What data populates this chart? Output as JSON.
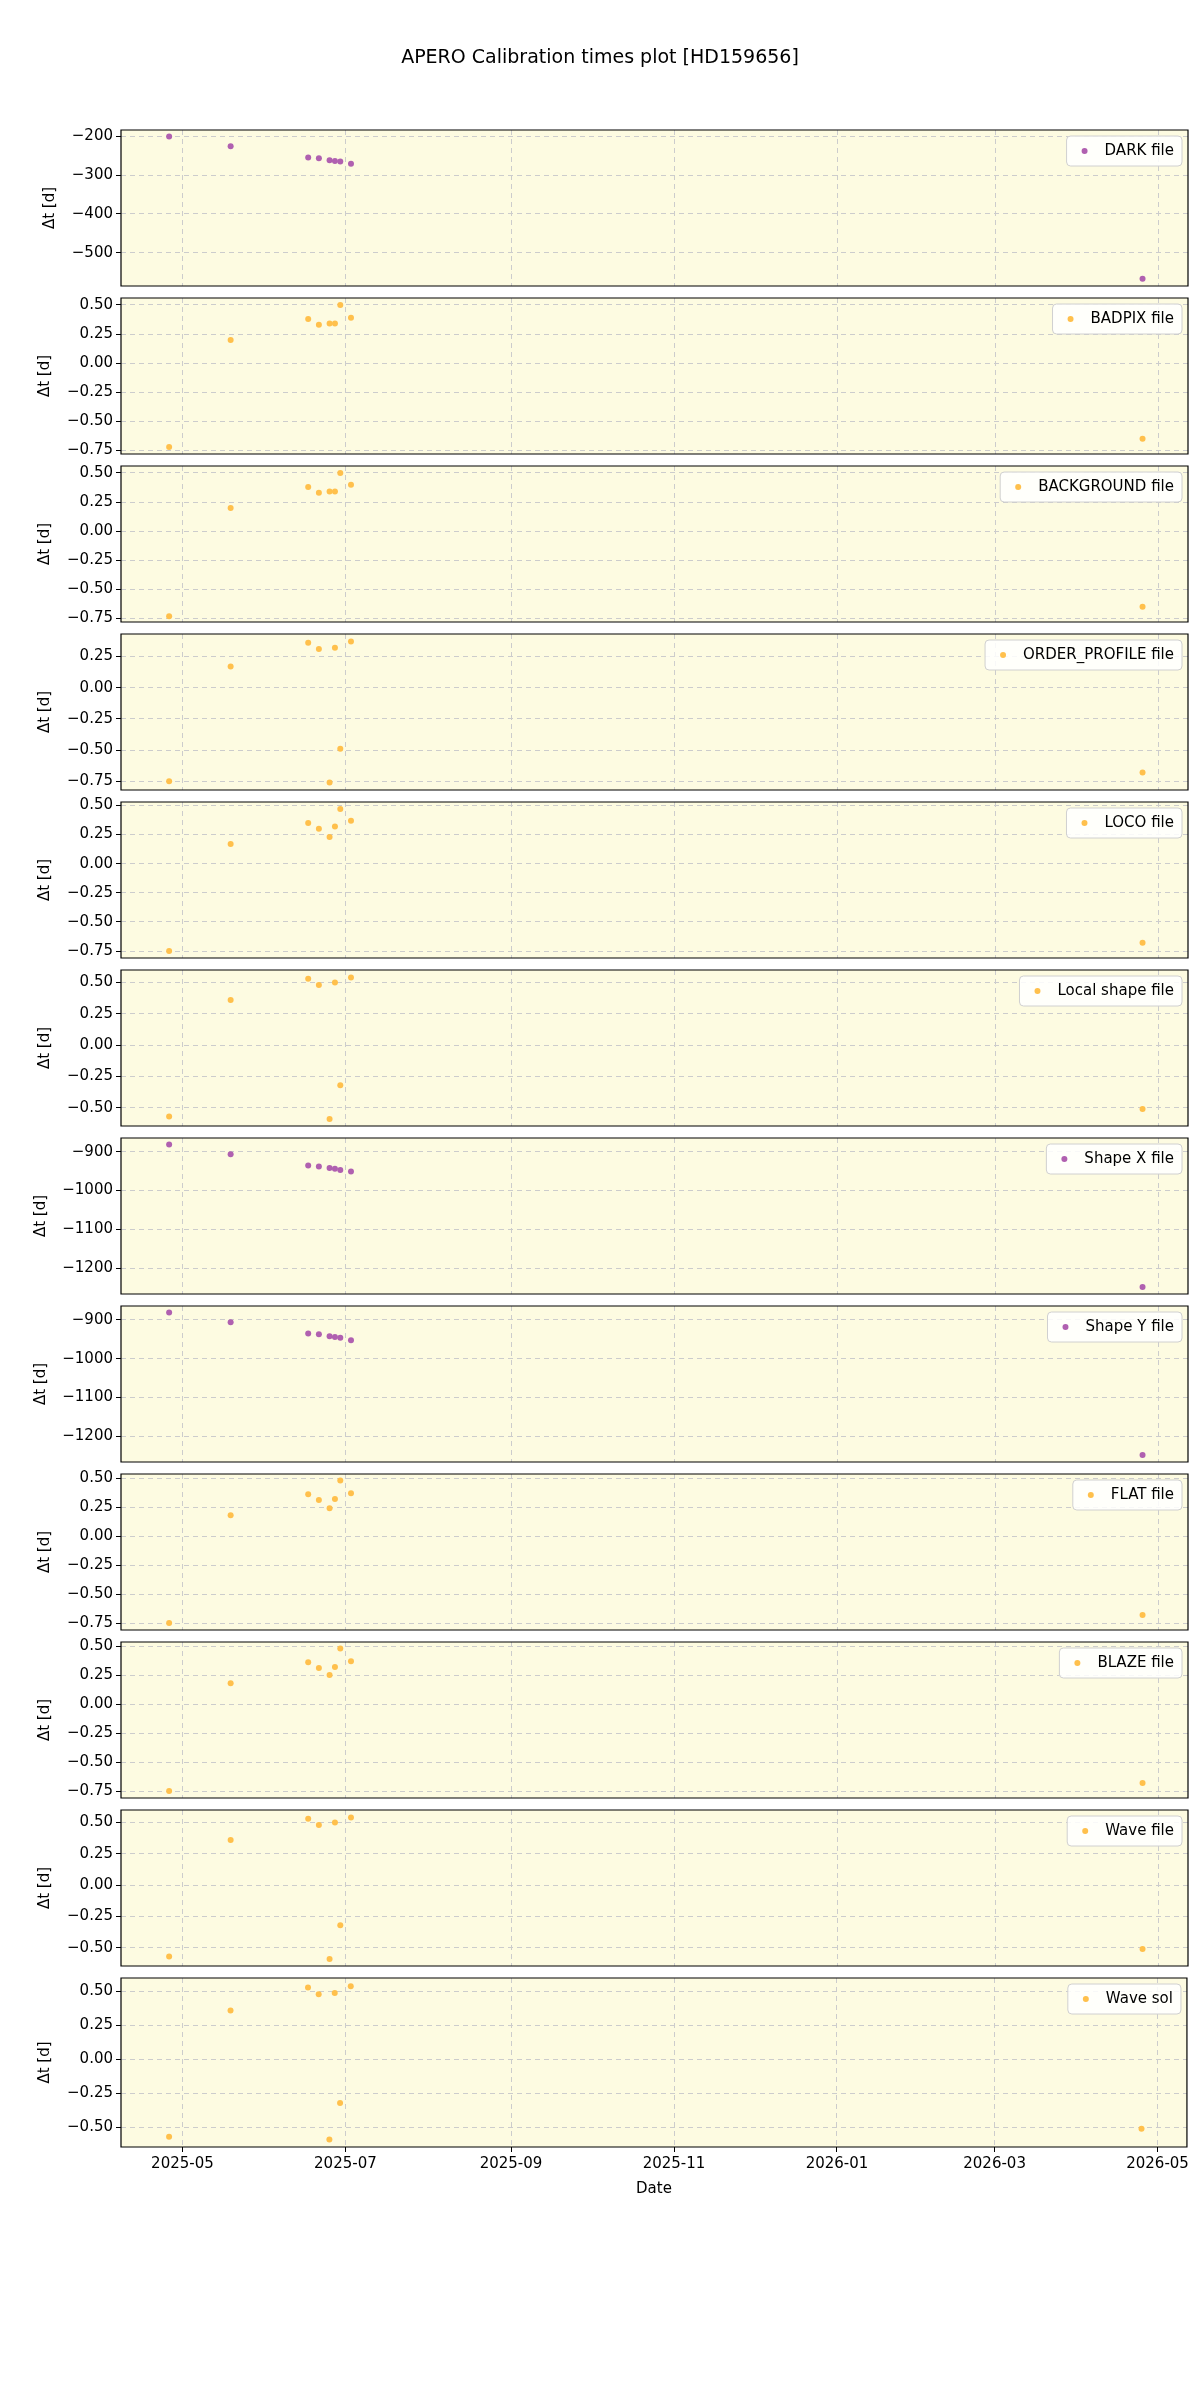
{
  "chart_data": [
    {
      "type": "scatter",
      "title": "APERO Calibration times plot [HD159656]",
      "ylabel": "Δt [d]",
      "x": [
        "2025-04-26",
        "2025-05-19",
        "2025-06-17",
        "2025-06-21",
        "2025-06-25",
        "2025-06-27",
        "2025-06-29",
        "2025-07-03",
        "2026-04-25"
      ],
      "xlim": [
        "2025-04-08",
        "2026-05-12"
      ],
      "xticks": [
        "2025-05",
        "2025-07",
        "2025-09",
        "2025-11",
        "2026-01",
        "2026-03",
        "2026-05"
      ],
      "ylim": [
        -586,
        -184
      ],
      "yticks": [
        {
          "value": -500,
          "label": "−500"
        },
        {
          "value": -400,
          "label": "−400"
        },
        {
          "value": -300,
          "label": "−300"
        },
        {
          "value": -200,
          "label": "−200"
        }
      ],
      "tick_labels": "y",
      "grid": true,
      "legend": "top right",
      "marker": "circle",
      "series": [
        {
          "name": "DARK file",
          "color": "#b060b0",
          "values": [
            -201,
            -226,
            -255,
            -257,
            -262,
            -264,
            -265,
            -271,
            -567
          ]
        }
      ]
    },
    {
      "type": "scatter",
      "ylabel": "Δt [d]",
      "x": [
        "2025-04-26",
        "2025-05-19",
        "2025-06-17",
        "2025-06-21",
        "2025-06-25",
        "2025-06-27",
        "2025-06-29",
        "2025-07-03",
        "2026-04-25"
      ],
      "xlim": [
        "2025-04-08",
        "2026-05-12"
      ],
      "xticks": [
        "2025-05",
        "2025-07",
        "2025-09",
        "2025-11",
        "2026-01",
        "2026-03",
        "2026-05"
      ],
      "ylim": [
        -0.78,
        0.56
      ],
      "yticks": [
        {
          "value": -0.75,
          "label": "−0.75"
        },
        {
          "value": -0.5,
          "label": "−0.50"
        },
        {
          "value": -0.25,
          "label": "−0.25"
        },
        {
          "value": 0,
          "label": "0.00"
        },
        {
          "value": 0.25,
          "label": "0.25"
        },
        {
          "value": 0.5,
          "label": "0.50"
        }
      ],
      "tick_labels": "y",
      "grid": true,
      "legend": "top right",
      "marker": "circle",
      "series": [
        {
          "name": "BADPIX file",
          "color": "#ffc04c",
          "values": [
            -0.72,
            0.2,
            0.38,
            0.33,
            0.34,
            0.34,
            0.5,
            0.39,
            -0.65
          ]
        }
      ]
    },
    {
      "type": "scatter",
      "ylabel": "Δt [d]",
      "x": [
        "2025-04-26",
        "2025-05-19",
        "2025-06-17",
        "2025-06-21",
        "2025-06-25",
        "2025-06-27",
        "2025-06-29",
        "2025-07-03",
        "2026-04-25"
      ],
      "xlim": [
        "2025-04-08",
        "2026-05-12"
      ],
      "xticks": [
        "2025-05",
        "2025-07",
        "2025-09",
        "2025-11",
        "2026-01",
        "2026-03",
        "2026-05"
      ],
      "ylim": [
        -0.78,
        0.56
      ],
      "yticks": [
        {
          "value": -0.75,
          "label": "−0.75"
        },
        {
          "value": -0.5,
          "label": "−0.50"
        },
        {
          "value": -0.25,
          "label": "−0.25"
        },
        {
          "value": 0,
          "label": "0.00"
        },
        {
          "value": 0.25,
          "label": "0.25"
        },
        {
          "value": 0.5,
          "label": "0.50"
        }
      ],
      "tick_labels": "y",
      "grid": true,
      "legend": "top right",
      "marker": "circle",
      "series": [
        {
          "name": "BACKGROUND file",
          "color": "#ffc04c",
          "values": [
            -0.73,
            0.2,
            0.38,
            0.33,
            0.34,
            0.34,
            0.5,
            0.4,
            -0.65
          ]
        }
      ]
    },
    {
      "type": "scatter",
      "ylabel": "Δt [d]",
      "x": [
        "2025-04-26",
        "2025-05-19",
        "2025-06-17",
        "2025-06-21",
        "2025-06-25",
        "2025-06-27",
        "2025-06-29",
        "2025-07-03",
        "2026-04-25"
      ],
      "xlim": [
        "2025-04-08",
        "2026-05-12"
      ],
      "xticks": [
        "2025-05",
        "2025-07",
        "2025-09",
        "2025-11",
        "2026-01",
        "2026-03",
        "2026-05"
      ],
      "ylim": [
        -0.82,
        0.43
      ],
      "yticks": [
        {
          "value": -0.75,
          "label": "−0.75"
        },
        {
          "value": -0.5,
          "label": "−0.50"
        },
        {
          "value": -0.25,
          "label": "−0.25"
        },
        {
          "value": 0,
          "label": "0.00"
        },
        {
          "value": 0.25,
          "label": "0.25"
        }
      ],
      "tick_labels": "y",
      "grid": true,
      "legend": "top right",
      "marker": "circle",
      "series": [
        {
          "name": "ORDER_PROFILE file",
          "color": "#ffc04c",
          "values": [
            -0.75,
            0.17,
            0.36,
            0.31,
            -0.76,
            0.32,
            -0.49,
            0.37,
            -0.68
          ]
        }
      ]
    },
    {
      "type": "scatter",
      "ylabel": "Δt [d]",
      "x": [
        "2025-04-26",
        "2025-05-19",
        "2025-06-17",
        "2025-06-21",
        "2025-06-25",
        "2025-06-27",
        "2025-06-29",
        "2025-07-03",
        "2026-04-25"
      ],
      "xlim": [
        "2025-04-08",
        "2026-05-12"
      ],
      "xticks": [
        "2025-05",
        "2025-07",
        "2025-09",
        "2025-11",
        "2026-01",
        "2026-03",
        "2026-05"
      ],
      "ylim": [
        -0.81,
        0.53
      ],
      "yticks": [
        {
          "value": -0.75,
          "label": "−0.75"
        },
        {
          "value": -0.5,
          "label": "−0.50"
        },
        {
          "value": -0.25,
          "label": "−0.25"
        },
        {
          "value": 0,
          "label": "0.00"
        },
        {
          "value": 0.25,
          "label": "0.25"
        },
        {
          "value": 0.5,
          "label": "0.50"
        }
      ],
      "tick_labels": "y",
      "grid": true,
      "legend": "top right",
      "marker": "circle",
      "series": [
        {
          "name": "LOCO file",
          "color": "#ffc04c",
          "values": [
            -0.75,
            0.17,
            0.35,
            0.3,
            0.23,
            0.32,
            0.47,
            0.37,
            -0.68
          ]
        }
      ]
    },
    {
      "type": "scatter",
      "ylabel": "Δt [d]",
      "x": [
        "2025-04-26",
        "2025-05-19",
        "2025-06-17",
        "2025-06-21",
        "2025-06-25",
        "2025-06-27",
        "2025-06-29",
        "2025-07-03",
        "2026-04-25"
      ],
      "xlim": [
        "2025-04-08",
        "2026-05-12"
      ],
      "xticks": [
        "2025-05",
        "2025-07",
        "2025-09",
        "2025-11",
        "2026-01",
        "2026-03",
        "2026-05"
      ],
      "ylim": [
        -0.645,
        0.6
      ],
      "yticks": [
        {
          "value": -0.5,
          "label": "−0.50"
        },
        {
          "value": -0.25,
          "label": "−0.25"
        },
        {
          "value": 0,
          "label": "0.00"
        },
        {
          "value": 0.25,
          "label": "0.25"
        },
        {
          "value": 0.5,
          "label": "0.50"
        }
      ],
      "tick_labels": "y",
      "grid": true,
      "legend": "top right",
      "marker": "circle",
      "series": [
        {
          "name": "Local shape file",
          "color": "#ffc04c",
          "values": [
            -0.57,
            0.36,
            0.53,
            0.48,
            -0.59,
            0.5,
            -0.32,
            0.54,
            -0.51
          ]
        }
      ]
    },
    {
      "type": "scatter",
      "ylabel": "Δt [d]",
      "x": [
        "2025-04-26",
        "2025-05-19",
        "2025-06-17",
        "2025-06-21",
        "2025-06-25",
        "2025-06-27",
        "2025-06-29",
        "2025-07-03",
        "2026-04-25"
      ],
      "xlim": [
        "2025-04-08",
        "2026-05-12"
      ],
      "xticks": [
        "2025-05",
        "2025-07",
        "2025-09",
        "2025-11",
        "2026-01",
        "2026-03",
        "2026-05"
      ],
      "ylim": [
        -1266,
        -865
      ],
      "yticks": [
        {
          "value": -1200,
          "label": "−1200"
        },
        {
          "value": -1100,
          "label": "−1100"
        },
        {
          "value": -1000,
          "label": "−1000"
        },
        {
          "value": -900,
          "label": "−900"
        }
      ],
      "tick_labels": "y",
      "grid": true,
      "legend": "top right",
      "marker": "circle",
      "series": [
        {
          "name": "Shape X file",
          "color": "#b060b0",
          "values": [
            -882,
            -907,
            -936,
            -938,
            -942,
            -944,
            -947,
            -951,
            -1248
          ]
        }
      ]
    },
    {
      "type": "scatter",
      "ylabel": "Δt [d]",
      "x": [
        "2025-04-26",
        "2025-05-19",
        "2025-06-17",
        "2025-06-21",
        "2025-06-25",
        "2025-06-27",
        "2025-06-29",
        "2025-07-03",
        "2026-04-25"
      ],
      "xlim": [
        "2025-04-08",
        "2026-05-12"
      ],
      "xticks": [
        "2025-05",
        "2025-07",
        "2025-09",
        "2025-11",
        "2026-01",
        "2026-03",
        "2026-05"
      ],
      "ylim": [
        -1266,
        -864
      ],
      "yticks": [
        {
          "value": -1200,
          "label": "−1200"
        },
        {
          "value": -1100,
          "label": "−1100"
        },
        {
          "value": -1000,
          "label": "−1000"
        },
        {
          "value": -900,
          "label": "−900"
        }
      ],
      "tick_labels": "y",
      "grid": true,
      "legend": "top right",
      "marker": "circle",
      "series": [
        {
          "name": "Shape Y file",
          "color": "#b060b0",
          "values": [
            -881,
            -906,
            -935,
            -937,
            -942,
            -944,
            -946,
            -952,
            -1248
          ]
        }
      ]
    },
    {
      "type": "scatter",
      "ylabel": "Δt [d]",
      "x": [
        "2025-04-26",
        "2025-05-19",
        "2025-06-17",
        "2025-06-21",
        "2025-06-25",
        "2025-06-27",
        "2025-06-29",
        "2025-07-03",
        "2026-04-25"
      ],
      "xlim": [
        "2025-04-08",
        "2026-05-12"
      ],
      "xticks": [
        "2025-05",
        "2025-07",
        "2025-09",
        "2025-11",
        "2026-01",
        "2026-03",
        "2026-05"
      ],
      "ylim": [
        -0.81,
        0.535
      ],
      "yticks": [
        {
          "value": -0.75,
          "label": "−0.75"
        },
        {
          "value": -0.5,
          "label": "−0.50"
        },
        {
          "value": -0.25,
          "label": "−0.25"
        },
        {
          "value": 0,
          "label": "0.00"
        },
        {
          "value": 0.25,
          "label": "0.25"
        },
        {
          "value": 0.5,
          "label": "0.50"
        }
      ],
      "tick_labels": "y",
      "grid": true,
      "legend": "top right",
      "marker": "circle",
      "series": [
        {
          "name": "FLAT file",
          "color": "#ffc04c",
          "values": [
            -0.75,
            0.18,
            0.36,
            0.31,
            0.24,
            0.32,
            0.48,
            0.37,
            -0.68
          ]
        }
      ]
    },
    {
      "type": "scatter",
      "ylabel": "Δt [d]",
      "x": [
        "2025-04-26",
        "2025-05-19",
        "2025-06-17",
        "2025-06-21",
        "2025-06-25",
        "2025-06-27",
        "2025-06-29",
        "2025-07-03",
        "2026-04-25"
      ],
      "xlim": [
        "2025-04-08",
        "2026-05-12"
      ],
      "xticks": [
        "2025-05",
        "2025-07",
        "2025-09",
        "2025-11",
        "2026-01",
        "2026-03",
        "2026-05"
      ],
      "ylim": [
        -0.81,
        0.535
      ],
      "yticks": [
        {
          "value": -0.75,
          "label": "−0.75"
        },
        {
          "value": -0.5,
          "label": "−0.50"
        },
        {
          "value": -0.25,
          "label": "−0.25"
        },
        {
          "value": 0,
          "label": "0.00"
        },
        {
          "value": 0.25,
          "label": "0.25"
        },
        {
          "value": 0.5,
          "label": "0.50"
        }
      ],
      "tick_labels": "y",
      "grid": true,
      "legend": "top right",
      "marker": "circle",
      "series": [
        {
          "name": "BLAZE file",
          "color": "#ffc04c",
          "values": [
            -0.75,
            0.18,
            0.36,
            0.31,
            0.25,
            0.32,
            0.48,
            0.37,
            -0.68
          ]
        }
      ]
    },
    {
      "type": "scatter",
      "ylabel": "Δt [d]",
      "x": [
        "2025-04-26",
        "2025-05-19",
        "2025-06-17",
        "2025-06-21",
        "2025-06-25",
        "2025-06-27",
        "2025-06-29",
        "2025-07-03",
        "2026-04-25"
      ],
      "xlim": [
        "2025-04-08",
        "2026-05-12"
      ],
      "xticks": [
        "2025-05",
        "2025-07",
        "2025-09",
        "2025-11",
        "2026-01",
        "2026-03",
        "2026-05"
      ],
      "ylim": [
        -0.645,
        0.6
      ],
      "yticks": [
        {
          "value": -0.5,
          "label": "−0.50"
        },
        {
          "value": -0.25,
          "label": "−0.25"
        },
        {
          "value": 0,
          "label": "0.00"
        },
        {
          "value": 0.25,
          "label": "0.25"
        },
        {
          "value": 0.5,
          "label": "0.50"
        }
      ],
      "tick_labels": "y",
      "grid": true,
      "legend": "top right",
      "marker": "circle",
      "series": [
        {
          "name": "Wave file",
          "color": "#ffc04c",
          "values": [
            -0.57,
            0.36,
            0.53,
            0.48,
            -0.59,
            0.5,
            -0.32,
            0.54,
            -0.51
          ]
        }
      ]
    },
    {
      "type": "scatter",
      "xlabel": "Date",
      "ylabel": "Δt [d]",
      "x": [
        "2025-04-26",
        "2025-05-19",
        "2025-06-17",
        "2025-06-21",
        "2025-06-25",
        "2025-06-27",
        "2025-06-29",
        "2025-07-03",
        "2026-04-25"
      ],
      "xlim": [
        "2025-04-08",
        "2026-05-12"
      ],
      "xticks": [
        "2025-05",
        "2025-07",
        "2025-09",
        "2025-11",
        "2026-01",
        "2026-03",
        "2026-05"
      ],
      "ylim": [
        -0.645,
        0.6
      ],
      "yticks": [
        {
          "value": -0.5,
          "label": "−0.50"
        },
        {
          "value": -0.25,
          "label": "−0.25"
        },
        {
          "value": 0,
          "label": "0.00"
        },
        {
          "value": 0.25,
          "label": "0.25"
        },
        {
          "value": 0.5,
          "label": "0.50"
        }
      ],
      "grid": true,
      "legend": "top right",
      "marker": "circle",
      "series": [
        {
          "name": "Wave sol",
          "color": "#ffc04c",
          "values": [
            -0.57,
            0.36,
            0.53,
            0.48,
            -0.59,
            0.49,
            -0.32,
            0.54,
            -0.51
          ]
        }
      ]
    }
  ]
}
